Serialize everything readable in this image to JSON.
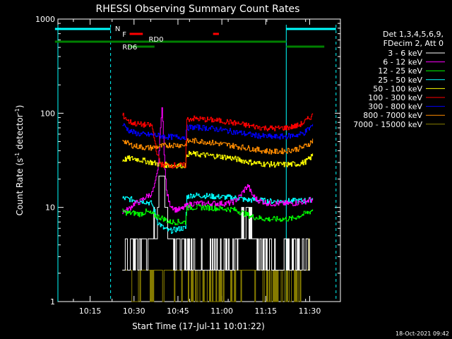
{
  "chart_data": {
    "type": "line",
    "title": "RHESSI Observing Summary Count Rates",
    "xlabel": "Start Time (17-Jul-11 10:01:22)",
    "ylabel": "Count Rate (s",
    "ylabel_sup": "-1",
    "ylabel_tail": " detector",
    "ylabel_tail_sup": "-1",
    "ylabel_close": ")",
    "y_scale": "log",
    "ylim": [
      1,
      1000
    ],
    "xlim_minutes": [
      3,
      39.5
    ],
    "xlim_time": [
      "10:04",
      "11:40:30"
    ],
    "y_ticks": [
      1,
      10,
      100,
      1000
    ],
    "y_tick_labels": [
      "1",
      "10",
      "100",
      "1000"
    ],
    "x_ticks": [
      15,
      30,
      45,
      60,
      75,
      90
    ],
    "x_tick_labels": [
      "10:15",
      "10:30",
      "10:45",
      "11:00",
      "11:15",
      "11:30"
    ],
    "legend_header": [
      "Det 1,3,4,5,6,9,",
      "FDecim 2, Att 0"
    ],
    "footer_date": "18-Oct-2021 09:42",
    "annotations": {
      "N": "N",
      "F": "F",
      "RD0": "RD0",
      "RD6": "RD6"
    },
    "night_cyan": {
      "top_segments": [
        [
          3,
          22
        ],
        [
          82,
          99
        ]
      ],
      "dashed_lines": [
        22,
        99
      ]
    },
    "flare_flag": {
      "segments": [
        [
          28.5,
          33
        ],
        [
          57,
          59
        ]
      ]
    },
    "decimation_flags": {
      "upper": [
        [
          3,
          37.5
        ],
        [
          37.5,
          82
        ]
      ],
      "lower": [
        [
          28,
          37
        ],
        [
          82,
          95
        ]
      ]
    },
    "series": [
      {
        "name": "3 - 6 keV",
        "color": "#ffffff",
        "points": [
          [
            16,
            3
          ],
          [
            18,
            3
          ],
          [
            19,
            3.5
          ],
          [
            20,
            3.2
          ],
          [
            22,
            3.4
          ],
          [
            24,
            3.6
          ],
          [
            26,
            4.2
          ],
          [
            27,
            6
          ],
          [
            28,
            10
          ],
          [
            29,
            18
          ],
          [
            29.5,
            28
          ],
          [
            30,
            20
          ],
          [
            30.5,
            12
          ],
          [
            31,
            8
          ],
          [
            32,
            5.5
          ],
          [
            34,
            4
          ],
          [
            36,
            3
          ],
          [
            38,
            3
          ],
          [
            40,
            2.8
          ],
          [
            44,
            2.6
          ],
          [
            48,
            2.8
          ],
          [
            52,
            3
          ],
          [
            54,
            3.3
          ],
          [
            56,
            4.5
          ],
          [
            58,
            6.5
          ],
          [
            59,
            7.5
          ],
          [
            60,
            6
          ],
          [
            62,
            4
          ],
          [
            64,
            3.2
          ],
          [
            66,
            3
          ],
          [
            70,
            2.8
          ],
          [
            74,
            2.8
          ],
          [
            78,
            3
          ],
          [
            80,
            3
          ]
        ]
      },
      {
        "name": "6 - 12 keV",
        "color": "#ff00ff",
        "points": [
          [
            16,
            9
          ],
          [
            18,
            9.5
          ],
          [
            20,
            11
          ],
          [
            22,
            11.5
          ],
          [
            24,
            13
          ],
          [
            26,
            14
          ],
          [
            27,
            17
          ],
          [
            28,
            24
          ],
          [
            28.5,
            40
          ],
          [
            29,
            75
          ],
          [
            29.5,
            108
          ],
          [
            30,
            60
          ],
          [
            30.5,
            25
          ],
          [
            31,
            15
          ],
          [
            32,
            11
          ],
          [
            34,
            9.5
          ],
          [
            36,
            9.5
          ],
          [
            38,
            10.5
          ],
          [
            40,
            11
          ],
          [
            44,
            11
          ],
          [
            48,
            11
          ],
          [
            52,
            11
          ],
          [
            54,
            11.5
          ],
          [
            56,
            13
          ],
          [
            58,
            16
          ],
          [
            59,
            17
          ],
          [
            60,
            14
          ],
          [
            62,
            12
          ],
          [
            64,
            11.5
          ],
          [
            66,
            11
          ],
          [
            70,
            11
          ],
          [
            74,
            11
          ],
          [
            78,
            11.5
          ],
          [
            80,
            12
          ],
          [
            81,
            12
          ]
        ]
      },
      {
        "name": "12 - 25 keV",
        "color": "#00ff00",
        "points": [
          [
            16,
            9
          ],
          [
            18,
            8.7
          ],
          [
            20,
            8.7
          ],
          [
            22,
            8.5
          ],
          [
            24,
            9
          ],
          [
            26,
            8.5
          ],
          [
            28,
            8
          ],
          [
            30,
            7.6
          ],
          [
            32,
            7
          ],
          [
            34,
            7
          ],
          [
            36,
            7
          ],
          [
            37.5,
            7
          ],
          [
            38,
            10
          ],
          [
            40,
            10
          ],
          [
            44,
            10
          ],
          [
            48,
            9.8
          ],
          [
            52,
            9.6
          ],
          [
            54,
            9.5
          ],
          [
            56,
            9
          ],
          [
            58,
            8.5
          ],
          [
            60,
            8
          ],
          [
            62,
            7.8
          ],
          [
            64,
            7.6
          ],
          [
            66,
            7.5
          ],
          [
            70,
            7.5
          ],
          [
            74,
            7.6
          ],
          [
            78,
            8.5
          ],
          [
            80,
            9
          ],
          [
            81,
            9.5
          ]
        ]
      },
      {
        "name": "25 - 50 keV",
        "color": "#00ffff",
        "points": [
          [
            16,
            12.5
          ],
          [
            18,
            12.3
          ],
          [
            20,
            12
          ],
          [
            22,
            11.8
          ],
          [
            24,
            11.5
          ],
          [
            26,
            11
          ],
          [
            27,
            9
          ],
          [
            28,
            7
          ],
          [
            29,
            6.5
          ],
          [
            30,
            6
          ],
          [
            32,
            5.6
          ],
          [
            34,
            5.8
          ],
          [
            36,
            6
          ],
          [
            37.5,
            6
          ],
          [
            38,
            13
          ],
          [
            40,
            13.5
          ],
          [
            44,
            13.3
          ],
          [
            48,
            13
          ],
          [
            52,
            12.8
          ],
          [
            56,
            12.5
          ],
          [
            58,
            12
          ],
          [
            60,
            12
          ],
          [
            62,
            12
          ],
          [
            64,
            11.8
          ],
          [
            66,
            11.6
          ],
          [
            70,
            11.6
          ],
          [
            74,
            11.7
          ],
          [
            78,
            11.8
          ],
          [
            80,
            12
          ],
          [
            81,
            12.5
          ]
        ]
      },
      {
        "name": "50 - 100 keV",
        "color": "#ffff00",
        "points": [
          [
            16,
            32
          ],
          [
            18,
            33
          ],
          [
            20,
            33
          ],
          [
            22,
            32
          ],
          [
            24,
            31
          ],
          [
            26,
            30
          ],
          [
            28,
            29
          ],
          [
            30,
            28.5
          ],
          [
            32,
            28
          ],
          [
            34,
            28
          ],
          [
            36,
            28
          ],
          [
            37.5,
            28
          ],
          [
            38,
            37
          ],
          [
            40,
            37
          ],
          [
            44,
            36
          ],
          [
            48,
            35
          ],
          [
            52,
            34
          ],
          [
            56,
            32
          ],
          [
            60,
            30
          ],
          [
            64,
            29
          ],
          [
            68,
            28.5
          ],
          [
            72,
            28.5
          ],
          [
            76,
            29
          ],
          [
            78,
            30
          ],
          [
            80,
            33
          ],
          [
            81,
            36
          ]
        ]
      },
      {
        "name": "100 - 300 keV",
        "color": "#ff0000",
        "points": [
          [
            16,
            95
          ],
          [
            17,
            90
          ],
          [
            18,
            82
          ],
          [
            20,
            78
          ],
          [
            22,
            76
          ],
          [
            24,
            75
          ],
          [
            26,
            74
          ],
          [
            28,
            35
          ],
          [
            29,
            29
          ],
          [
            30,
            28
          ],
          [
            32,
            28
          ],
          [
            34,
            28
          ],
          [
            36,
            28
          ],
          [
            37.5,
            28
          ],
          [
            38,
            86
          ],
          [
            40,
            88
          ],
          [
            44,
            86
          ],
          [
            48,
            84
          ],
          [
            52,
            81
          ],
          [
            56,
            77
          ],
          [
            60,
            73
          ],
          [
            64,
            70
          ],
          [
            68,
            69
          ],
          [
            72,
            70
          ],
          [
            76,
            74
          ],
          [
            78,
            80
          ],
          [
            80,
            90
          ],
          [
            81,
            95
          ]
        ]
      },
      {
        "name": "300 - 800 keV",
        "color": "#0000ff",
        "points": [
          [
            16,
            76
          ],
          [
            17,
            72
          ],
          [
            18,
            66
          ],
          [
            20,
            62
          ],
          [
            22,
            60
          ],
          [
            24,
            59
          ],
          [
            26,
            59
          ],
          [
            28,
            58
          ],
          [
            30,
            57
          ],
          [
            32,
            56
          ],
          [
            34,
            56
          ],
          [
            36,
            56
          ],
          [
            37.5,
            56
          ],
          [
            38,
            70
          ],
          [
            40,
            71
          ],
          [
            44,
            70
          ],
          [
            48,
            68
          ],
          [
            52,
            65
          ],
          [
            56,
            62
          ],
          [
            60,
            59
          ],
          [
            64,
            57
          ],
          [
            68,
            56
          ],
          [
            72,
            57
          ],
          [
            76,
            59
          ],
          [
            78,
            62
          ],
          [
            80,
            70
          ],
          [
            81,
            75
          ]
        ]
      },
      {
        "name": "800 - 7000 keV",
        "color": "#ff8c00",
        "points": [
          [
            16,
            53
          ],
          [
            17,
            50
          ],
          [
            18,
            47
          ],
          [
            20,
            45
          ],
          [
            22,
            44
          ],
          [
            24,
            43
          ],
          [
            26,
            43
          ],
          [
            28,
            44
          ],
          [
            30,
            45
          ],
          [
            32,
            46
          ],
          [
            34,
            46
          ],
          [
            36,
            46
          ],
          [
            37.5,
            46
          ],
          [
            38,
            50
          ],
          [
            40,
            51
          ],
          [
            44,
            50
          ],
          [
            48,
            48
          ],
          [
            52,
            46
          ],
          [
            56,
            44
          ],
          [
            60,
            42
          ],
          [
            64,
            40
          ],
          [
            68,
            39
          ],
          [
            72,
            40
          ],
          [
            76,
            42
          ],
          [
            78,
            44
          ],
          [
            80,
            48
          ],
          [
            81,
            52
          ]
        ]
      },
      {
        "name": "7000 - 15000 keV",
        "color": "#8b8000",
        "points": [
          [
            16,
            2.5
          ],
          [
            18,
            2
          ],
          [
            19,
            1.5
          ],
          [
            20,
            1.2
          ],
          [
            22,
            1.8
          ],
          [
            24,
            2
          ],
          [
            26,
            1.6
          ],
          [
            28,
            2
          ],
          [
            30,
            1.8
          ],
          [
            32,
            2
          ],
          [
            34,
            1.8
          ],
          [
            36,
            2
          ],
          [
            38,
            1.8
          ],
          [
            40,
            1.5
          ],
          [
            44,
            1.7
          ],
          [
            48,
            1.6
          ],
          [
            52,
            1.8
          ],
          [
            56,
            1.6
          ],
          [
            60,
            1.7
          ],
          [
            64,
            1.6
          ],
          [
            68,
            1.7
          ],
          [
            72,
            1.6
          ],
          [
            76,
            1.8
          ],
          [
            78,
            2
          ],
          [
            80,
            2.5
          ]
        ]
      }
    ]
  }
}
